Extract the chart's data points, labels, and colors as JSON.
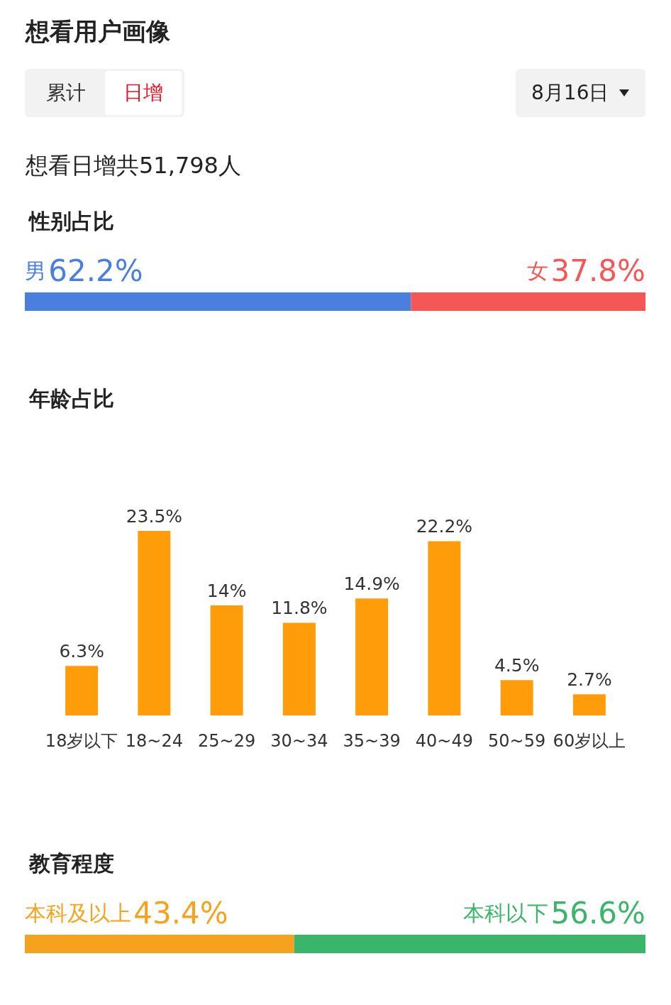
{
  "chart_data": [
    {
      "type": "other",
      "title": "想看用户画像",
      "annotations": [
        "累计",
        "日增",
        "8月16日",
        "想看日增共51,798人"
      ]
    },
    {
      "type": "bar",
      "title": "性别占比",
      "orientation": "horizontal",
      "stacked": true,
      "tick_labels": false,
      "categories": [
        null
      ],
      "series": [
        {
          "name": "男",
          "color": "#4a7fe0",
          "values": [
            62.2
          ],
          "value_labels": [
            "62.2%"
          ]
        },
        {
          "name": "女",
          "color": "#f55656",
          "values": [
            37.8
          ],
          "value_labels": [
            "37.8%"
          ]
        }
      ]
    },
    {
      "type": "bar",
      "title": "年龄占比",
      "tick_labels": "x",
      "categories": [
        "18岁以下",
        "18~24",
        "25~29",
        "30~34",
        "35~39",
        "40~49",
        "50~59",
        "60岁以上"
      ],
      "color": "#ff9c0a",
      "values": [
        6.3,
        23.5,
        14,
        11.8,
        14.9,
        22.2,
        4.5,
        2.7
      ],
      "value_labels": [
        "6.3%",
        "23.5%",
        "14%",
        "11.8%",
        "14.9%",
        "22.2%",
        "4.5%",
        "2.7%"
      ]
    },
    {
      "type": "bar",
      "title": "教育程度",
      "orientation": "horizontal",
      "stacked": true,
      "tick_labels": false,
      "categories": [
        null
      ],
      "series": [
        {
          "name": "本科及以上",
          "color": "#f5a31e",
          "values": [
            43.4
          ],
          "value_labels": [
            "43.4%"
          ]
        },
        {
          "name": "本科以下",
          "color": "#3bb56a",
          "values": [
            56.6
          ],
          "value_labels": [
            "56.6%"
          ]
        }
      ]
    }
  ]
}
